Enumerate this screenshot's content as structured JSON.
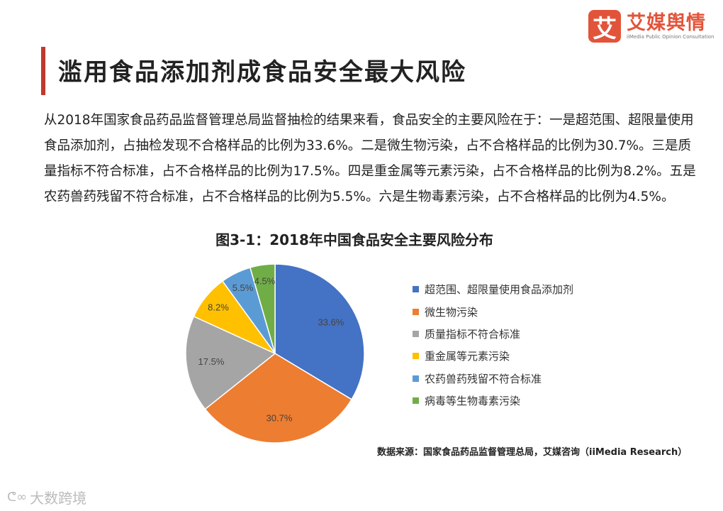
{
  "brand": {
    "mark": "艾",
    "name": "艾媒舆情",
    "sub": "iiMedia Public Opinion Consultation",
    "color": "#e2543a"
  },
  "header": {
    "title": "滥用食品添加剂成食品安全最大风险",
    "accent_color": "#c0392b"
  },
  "paragraph": "从2018年国家食品药品监督管理总局监督抽检的结果来看，食品安全的主要风险在于：一是超范围、超限量使用食品添加剂，占抽检发现不合格样品的比例为33.6%。二是微生物污染，占不合格样品的比例为30.7%。三是质量指标不符合标准，占不合格样品的比例为17.5%。四是重金属等元素污染，占不合格样品的比例为8.2%。五是农药兽药残留不符合标准，占不合格样品的比例为5.5%。六是生物毒素污染，占不合格样品的比例为4.5%。",
  "chart_data": {
    "type": "pie",
    "title": "图3-1：2018年中国食品安全主要风险分布",
    "categories": [
      "超范围、超限量使用食品添加剂",
      "微生物污染",
      "质量指标不符合标准",
      "重金属等元素污染",
      "农药兽药残留不符合标准",
      "病毒等生物毒素污染"
    ],
    "values": [
      33.6,
      30.7,
      17.5,
      8.2,
      5.5,
      4.5
    ],
    "labels": [
      "33.6%",
      "30.7%",
      "17.5%",
      "8.2%",
      "5.5%",
      "4.5%"
    ],
    "colors": [
      "#4472c4",
      "#ed7d31",
      "#a5a5a5",
      "#ffc000",
      "#5b9bd5",
      "#70ad47"
    ],
    "legend_position": "right"
  },
  "source": "数据来源：国家食品药品监督管理总局，艾媒咨询（iiMedia Research）",
  "watermark": {
    "icon": "ego-logo-icon",
    "text": "大数跨境"
  }
}
